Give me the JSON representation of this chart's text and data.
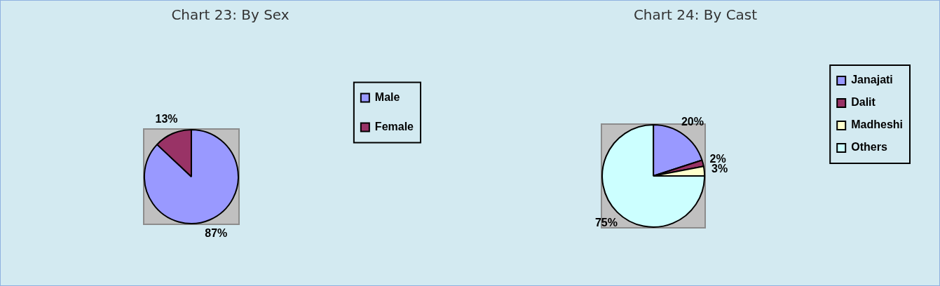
{
  "chart_data": [
    {
      "type": "pie",
      "title": "Chart 23: By Sex",
      "categories": [
        "Male",
        "Female"
      ],
      "values": [
        87,
        13
      ],
      "colors": [
        "#9999ff",
        "#993366"
      ],
      "value_labels": [
        "87%",
        "13%"
      ],
      "legend": "right"
    },
    {
      "type": "pie",
      "title": "Chart 24: By Cast",
      "categories": [
        "Janajati",
        "Dalit",
        "Madheshi",
        "Others"
      ],
      "values": [
        20,
        2,
        3,
        75
      ],
      "colors": [
        "#9999ff",
        "#993366",
        "#ffffcc",
        "#ccffff"
      ],
      "value_labels": [
        "20%",
        "2%",
        "3%",
        "75%"
      ],
      "legend": "right"
    }
  ]
}
